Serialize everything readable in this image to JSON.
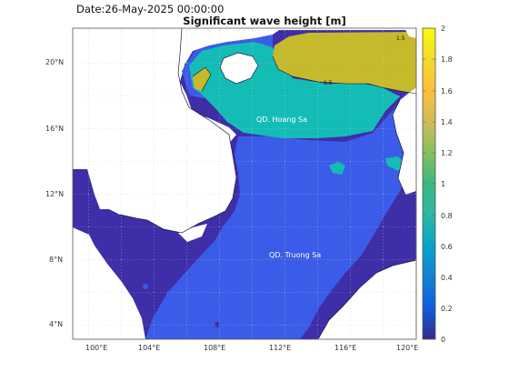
{
  "header": {
    "date": "Date:26-May-2025 00:00:00",
    "title": "Significant wave height [m]"
  },
  "map": {
    "lon_ticks": [
      "100°E",
      "104°E",
      "108°E",
      "112°E",
      "116°E",
      "120°E"
    ],
    "lat_ticks": [
      "20°N",
      "16°N",
      "12°N",
      "8°N",
      "4°N"
    ],
    "labels": {
      "paracel": "QD. Hoang Sa",
      "spratly": "QD. Truong Sa"
    },
    "contour_label": "1.5"
  },
  "colorbar": {
    "ticks": [
      "2",
      "1.8",
      "1.6",
      "1.4",
      "1.2",
      "1",
      "0.8",
      "0.6",
      "0.4",
      "0.2",
      "0"
    ],
    "min": 0,
    "max": 2,
    "palette": "parula"
  },
  "colors": {
    "sea_low": "#3b5ce8",
    "sea_very_low": "#3e2ea8",
    "sea_mid": "#12b5b8",
    "sea_high": "#c5b82a",
    "land": "#ffffff"
  }
}
